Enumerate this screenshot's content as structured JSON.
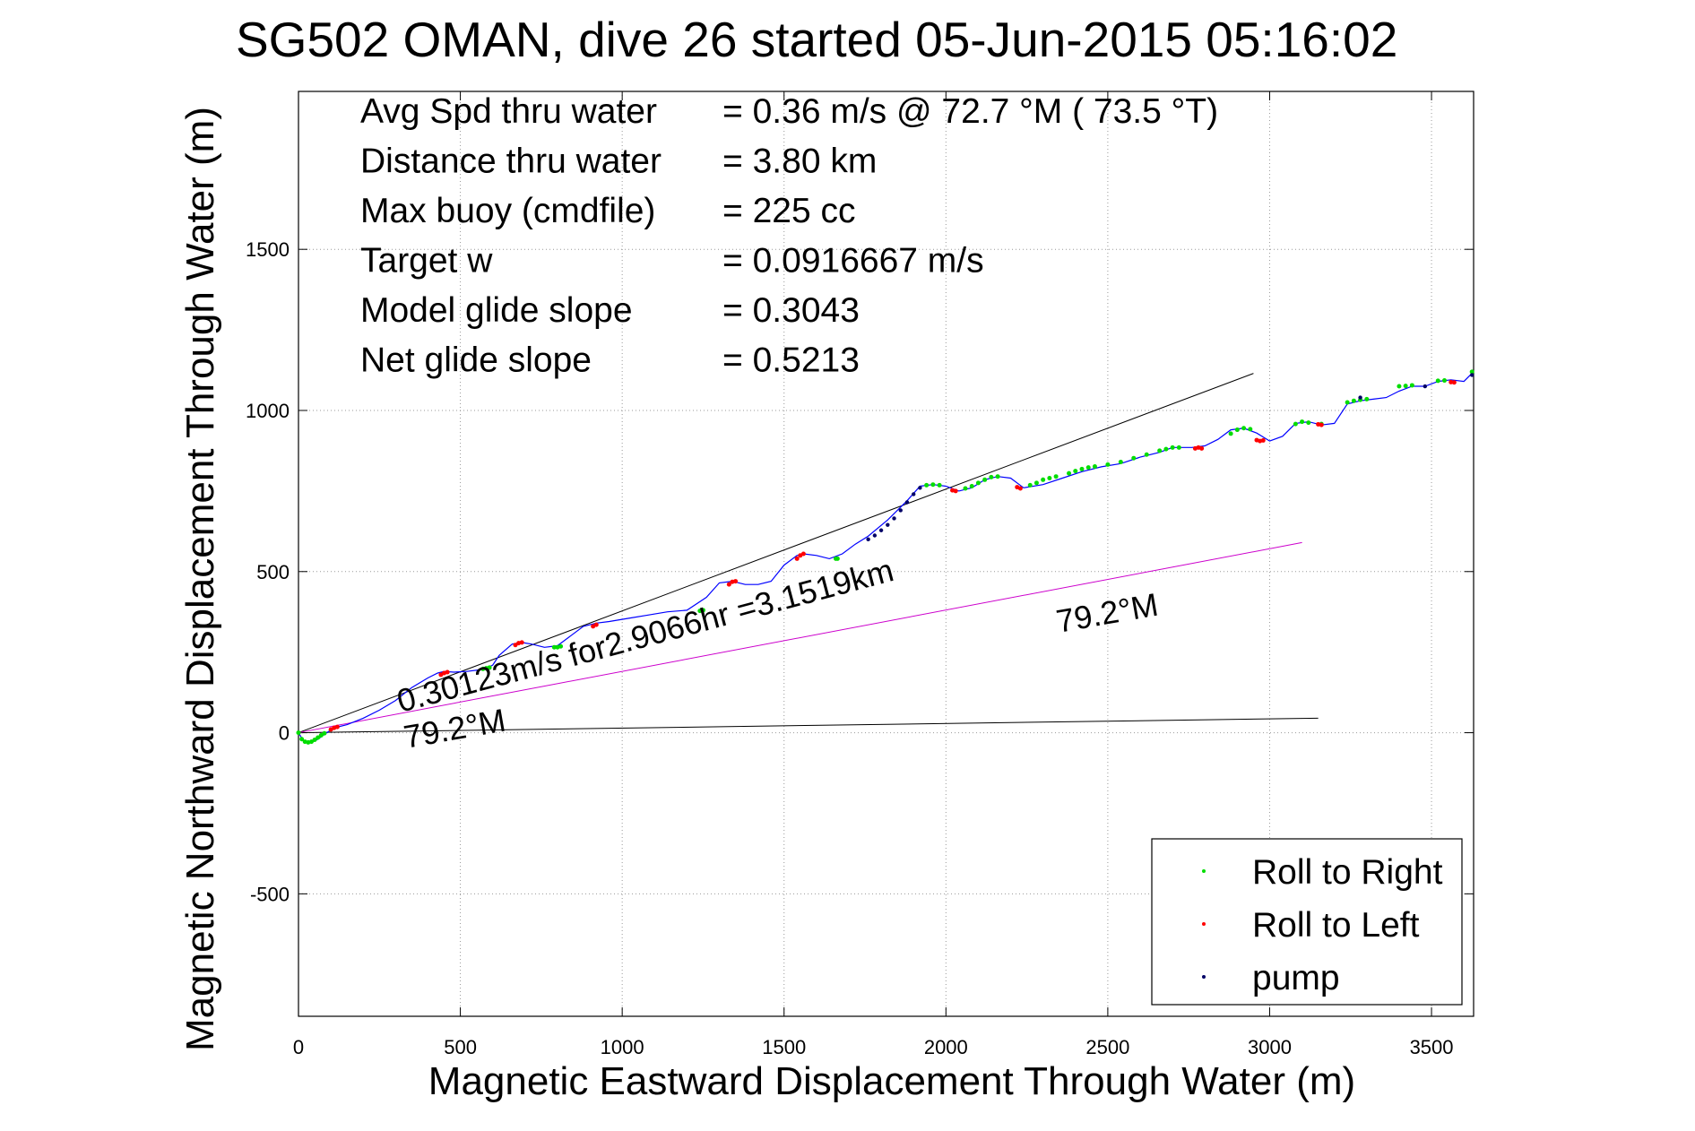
{
  "chart_data": {
    "type": "line",
    "title": "SG502 OMAN, dive 26 started 05-Jun-2015 05:16:02",
    "xlabel": "Magnetic Eastward Displacement Through Water (m)",
    "ylabel": "Magnetic Northward Displacement Through Water (m)",
    "xlim": [
      0,
      3630
    ],
    "ylim": [
      -880,
      1990
    ],
    "xticks": [
      0,
      500,
      1000,
      1500,
      2000,
      2500,
      3000,
      3500
    ],
    "xtick_labels": [
      "0",
      "500",
      "1000",
      "1500",
      "2000",
      "2500",
      "3000",
      "3500"
    ],
    "yticks": [
      -500,
      0,
      500,
      1000,
      1500
    ],
    "ytick_labels": [
      "-500",
      "0",
      "500",
      "1000",
      "1500"
    ],
    "grid": true,
    "legend_position": "bottom-right",
    "info_rows": [
      {
        "label": "Avg Spd thru water",
        "value": "=  0.36 m/s @  72.7 °M ( 73.5 °T)"
      },
      {
        "label": "Distance thru water",
        "value": "=  3.80 km"
      },
      {
        "label": "Max buoy (cmdfile)",
        "value": "= 225 cc"
      },
      {
        "label": "Target w",
        "value": "= 0.0916667 m/s"
      },
      {
        "label": "Model glide slope",
        "value": "= 0.3043"
      },
      {
        "label": "Net glide slope",
        "value": "= 0.5213"
      }
    ],
    "annotations": [
      {
        "text": "0.30123m/s for2.9066hr =3.1519km"
      },
      {
        "text": "79.2°M"
      },
      {
        "text": "79.2°M"
      }
    ],
    "reference_lines": [
      {
        "color": "#000000",
        "x": [
          0,
          2950
        ],
        "y": [
          0,
          1115
        ]
      },
      {
        "color": "#000000",
        "x": [
          0,
          3150
        ],
        "y": [
          0,
          45
        ]
      },
      {
        "color": "#cc00cc",
        "x": [
          0,
          3100
        ],
        "y": [
          0,
          590
        ]
      }
    ],
    "track": {
      "color": "#0000ff",
      "x": [
        0,
        15,
        40,
        60,
        80,
        110,
        150,
        200,
        250,
        300,
        350,
        400,
        430,
        450,
        480,
        520,
        560,
        580,
        600,
        620,
        660,
        690,
        720,
        760,
        800,
        840,
        880,
        920,
        960,
        1020,
        1080,
        1140,
        1200,
        1260,
        1300,
        1340,
        1380,
        1420,
        1460,
        1500,
        1540,
        1560,
        1600,
        1640,
        1680,
        1720,
        1760,
        1820,
        1880,
        1920,
        1960,
        2000,
        2040,
        2080,
        2120,
        2160,
        2200,
        2240,
        2300,
        2360,
        2420,
        2480,
        2540,
        2600,
        2660,
        2700,
        2760,
        2800,
        2840,
        2880,
        2920,
        2960,
        3000,
        3040,
        3080,
        3120,
        3160,
        3200,
        3240,
        3280,
        3320,
        3360,
        3400,
        3440,
        3480,
        3520,
        3560,
        3600,
        3630
      ],
      "y": [
        0,
        -25,
        -30,
        -20,
        -5,
        15,
        25,
        45,
        70,
        100,
        140,
        170,
        185,
        190,
        188,
        190,
        195,
        200,
        210,
        240,
        275,
        280,
        275,
        265,
        270,
        300,
        330,
        340,
        345,
        355,
        365,
        375,
        380,
        420,
        465,
        470,
        460,
        460,
        470,
        520,
        550,
        555,
        550,
        540,
        555,
        585,
        610,
        660,
        720,
        765,
        770,
        765,
        750,
        760,
        785,
        795,
        790,
        760,
        770,
        790,
        810,
        825,
        835,
        855,
        870,
        885,
        885,
        890,
        910,
        940,
        945,
        930,
        905,
        920,
        960,
        965,
        955,
        960,
        1020,
        1030,
        1035,
        1040,
        1060,
        1075,
        1075,
        1090,
        1095,
        1090,
        1120
      ]
    },
    "series": [
      {
        "name": "Roll to Right",
        "color": "#00dd00"
      },
      {
        "name": "Roll to Left",
        "color": "#ff0000"
      },
      {
        "name": "pump",
        "color": "#000066"
      }
    ],
    "roll_right_points": {
      "x": [
        0,
        10,
        20,
        30,
        40,
        50,
        60,
        70,
        80,
        570,
        580,
        590,
        790,
        800,
        810,
        1240,
        1250,
        1660,
        1665,
        1940,
        1960,
        1980,
        2060,
        2080,
        2100,
        2120,
        2140,
        2160,
        2260,
        2280,
        2300,
        2320,
        2340,
        2380,
        2400,
        2420,
        2440,
        2460,
        2500,
        2540,
        2580,
        2620,
        2660,
        2680,
        2700,
        2720,
        2880,
        2900,
        2920,
        2940,
        3080,
        3100,
        3120,
        3160,
        3240,
        3260,
        3280,
        3300,
        3400,
        3420,
        3440,
        3520,
        3540,
        3625
      ],
      "y": [
        0,
        -20,
        -28,
        -30,
        -28,
        -22,
        -15,
        -8,
        -2,
        198,
        200,
        202,
        265,
        265,
        268,
        378,
        380,
        540,
        540,
        768,
        770,
        768,
        758,
        765,
        775,
        785,
        793,
        795,
        768,
        775,
        785,
        790,
        795,
        805,
        812,
        818,
        823,
        826,
        832,
        840,
        852,
        863,
        875,
        880,
        885,
        885,
        928,
        940,
        945,
        942,
        958,
        965,
        962,
        958,
        1025,
        1030,
        1033,
        1035,
        1075,
        1076,
        1078,
        1092,
        1093,
        1120
      ]
    },
    "roll_left_points": {
      "x": [
        100,
        110,
        120,
        440,
        450,
        460,
        670,
        680,
        690,
        910,
        920,
        1330,
        1340,
        1350,
        1540,
        1550,
        1560,
        2020,
        2030,
        2220,
        2230,
        2770,
        2780,
        2790,
        2960,
        2970,
        2980,
        3150,
        3160,
        3560,
        3570
      ],
      "y": [
        10,
        15,
        18,
        180,
        185,
        188,
        272,
        278,
        280,
        330,
        335,
        460,
        468,
        470,
        540,
        550,
        555,
        752,
        750,
        762,
        758,
        882,
        885,
        882,
        908,
        905,
        907,
        957,
        955,
        1088,
        1087
      ]
    },
    "pump_points": {
      "x": [
        1760,
        1780,
        1800,
        1820,
        1840,
        1860,
        1880,
        1900,
        1920,
        3280,
        3480,
        3625
      ],
      "y": [
        600,
        612,
        628,
        645,
        665,
        690,
        715,
        740,
        760,
        1040,
        1075,
        1110
      ]
    }
  }
}
